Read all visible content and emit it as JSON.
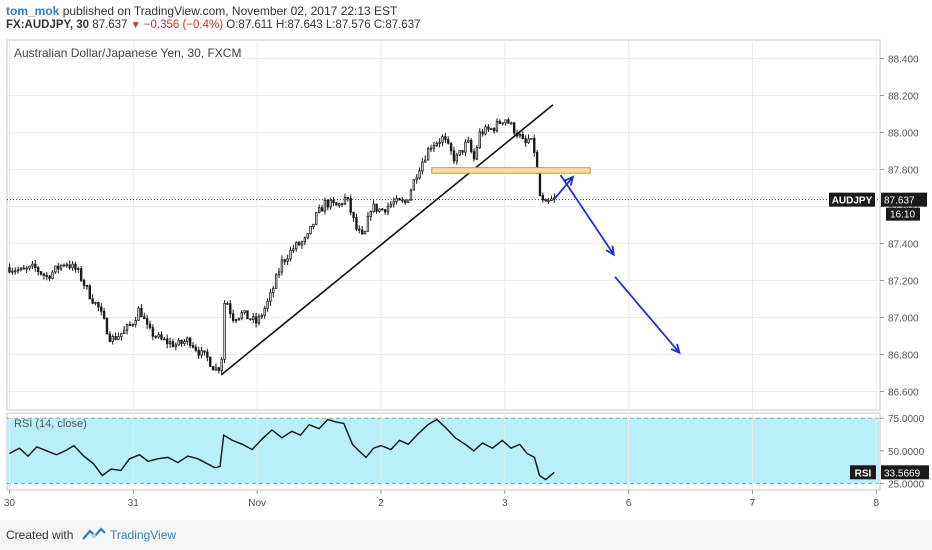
{
  "header": {
    "author": "tom_mok",
    "published": "published on TradingView.com, November 02, 2017 22:13 EST",
    "symbol": "FX:AUDJPY, 30",
    "last": "87.637",
    "change": "−0.356 (−0.4%)",
    "ohlc": {
      "o": "O:87.611",
      "h": "H:87.643",
      "l": "L:87.576",
      "c": "C:87.637"
    }
  },
  "footer": {
    "created_with": "Created with",
    "brand": "TradingView"
  },
  "colors": {
    "candle": "#1a1a1a",
    "rsi_band": "#b9eefb",
    "annotation_arrow": "#1f2fd6",
    "zone_fill": "#f6e0a4",
    "zone_border": "#c89a3a",
    "price_tag": "#1a1a1a",
    "negative": "#d0302f"
  },
  "chart_data": [
    {
      "type": "candlestick",
      "title": "Australian Dollar/Japanese Yen, 30, FXCM",
      "ylim": [
        86.5,
        88.5
      ],
      "y_ticks": [
        "88.400",
        "88.200",
        "88.000",
        "87.800",
        "87.600",
        "87.400",
        "87.200",
        "87.000",
        "86.800",
        "86.600"
      ],
      "x_ticks": [
        "30",
        "31",
        "Nov",
        "2",
        "3",
        "6",
        "7",
        "8"
      ],
      "x_tick_days": [
        0,
        1,
        2,
        3,
        4,
        5,
        6,
        7
      ],
      "xlim_days": [
        -0.02,
        7.03
      ],
      "last_price_label": "AUDJPY",
      "last_price": "87.637",
      "countdown": "16:10",
      "grid": true,
      "close_path": [
        [
          0.0,
          87.27
        ],
        [
          0.1,
          87.25
        ],
        [
          0.2,
          87.27
        ],
        [
          0.3,
          87.22
        ],
        [
          0.45,
          87.3
        ],
        [
          0.55,
          87.25
        ],
        [
          0.65,
          87.12
        ],
        [
          0.72,
          87.05
        ],
        [
          0.82,
          86.88
        ],
        [
          0.92,
          86.92
        ],
        [
          1.0,
          86.98
        ],
        [
          1.05,
          87.05
        ],
        [
          1.12,
          86.93
        ],
        [
          1.22,
          86.88
        ],
        [
          1.35,
          86.85
        ],
        [
          1.45,
          86.88
        ],
        [
          1.55,
          86.8
        ],
        [
          1.6,
          86.78
        ],
        [
          1.66,
          86.72
        ],
        [
          1.71,
          86.74
        ],
        [
          1.74,
          87.12
        ],
        [
          1.8,
          87.0
        ],
        [
          1.88,
          87.02
        ],
        [
          2.0,
          86.97
        ],
        [
          2.1,
          87.1
        ],
        [
          2.2,
          87.3
        ],
        [
          2.3,
          87.38
        ],
        [
          2.4,
          87.42
        ],
        [
          2.48,
          87.55
        ],
        [
          2.55,
          87.62
        ],
        [
          2.65,
          87.6
        ],
        [
          2.72,
          87.65
        ],
        [
          2.8,
          87.48
        ],
        [
          2.86,
          87.42
        ],
        [
          2.92,
          87.6
        ],
        [
          3.0,
          87.58
        ],
        [
          3.1,
          87.62
        ],
        [
          3.2,
          87.62
        ],
        [
          3.3,
          87.8
        ],
        [
          3.4,
          87.93
        ],
        [
          3.5,
          87.97
        ],
        [
          3.6,
          87.85
        ],
        [
          3.7,
          87.95
        ],
        [
          3.75,
          87.85
        ],
        [
          3.8,
          88.0
        ],
        [
          3.9,
          88.02
        ],
        [
          4.0,
          88.08
        ],
        [
          4.07,
          88.02
        ],
        [
          4.12,
          87.98
        ],
        [
          4.16,
          87.93
        ],
        [
          4.2,
          87.97
        ],
        [
          4.25,
          87.88
        ],
        [
          4.27,
          87.68
        ],
        [
          4.32,
          87.6
        ],
        [
          4.37,
          87.63
        ],
        [
          4.4,
          87.637
        ]
      ],
      "trendline": [
        [
          1.71,
          86.69
        ],
        [
          4.39,
          88.15
        ]
      ],
      "resistance_zone": {
        "from_day": 3.41,
        "to_day": 4.69,
        "low": 87.78,
        "high": 87.81
      },
      "annotation_arrows": [
        [
          [
            4.4,
            87.64
          ],
          [
            4.55,
            87.76
          ]
        ],
        [
          [
            4.45,
            87.77
          ],
          [
            4.88,
            87.34
          ]
        ],
        [
          [
            4.89,
            87.22
          ],
          [
            5.41,
            86.81
          ]
        ]
      ]
    },
    {
      "type": "line",
      "title": "RSI (14, close)",
      "series": [
        {
          "name": "RSI",
          "last": "33.5669"
        }
      ],
      "ylim": [
        20,
        79
      ],
      "band": [
        25,
        75
      ],
      "y_ticks": [
        "75.0000",
        "50.0000",
        "25.0000"
      ],
      "last_label": "RSI",
      "points": [
        [
          0.0,
          48
        ],
        [
          0.08,
          52
        ],
        [
          0.15,
          46
        ],
        [
          0.22,
          53
        ],
        [
          0.3,
          50
        ],
        [
          0.38,
          47
        ],
        [
          0.45,
          50
        ],
        [
          0.52,
          54
        ],
        [
          0.6,
          46
        ],
        [
          0.68,
          40
        ],
        [
          0.75,
          31
        ],
        [
          0.82,
          36
        ],
        [
          0.9,
          35
        ],
        [
          0.97,
          44
        ],
        [
          1.05,
          47
        ],
        [
          1.12,
          42
        ],
        [
          1.2,
          44
        ],
        [
          1.28,
          45
        ],
        [
          1.36,
          41
        ],
        [
          1.44,
          46
        ],
        [
          1.52,
          44
        ],
        [
          1.6,
          40
        ],
        [
          1.66,
          37
        ],
        [
          1.7,
          38
        ],
        [
          1.73,
          62
        ],
        [
          1.8,
          58
        ],
        [
          1.88,
          55
        ],
        [
          1.96,
          51
        ],
        [
          2.05,
          60
        ],
        [
          2.12,
          66
        ],
        [
          2.2,
          60
        ],
        [
          2.28,
          65
        ],
        [
          2.35,
          62
        ],
        [
          2.42,
          70
        ],
        [
          2.5,
          67
        ],
        [
          2.57,
          74
        ],
        [
          2.64,
          72
        ],
        [
          2.7,
          71
        ],
        [
          2.77,
          55
        ],
        [
          2.82,
          50
        ],
        [
          2.88,
          45
        ],
        [
          2.94,
          52
        ],
        [
          3.0,
          54
        ],
        [
          3.08,
          51
        ],
        [
          3.15,
          58
        ],
        [
          3.22,
          55
        ],
        [
          3.3,
          63
        ],
        [
          3.38,
          70
        ],
        [
          3.45,
          74
        ],
        [
          3.52,
          68
        ],
        [
          3.6,
          60
        ],
        [
          3.68,
          55
        ],
        [
          3.75,
          50
        ],
        [
          3.82,
          56
        ],
        [
          3.9,
          52
        ],
        [
          3.98,
          58
        ],
        [
          4.05,
          52
        ],
        [
          4.12,
          55
        ],
        [
          4.18,
          48
        ],
        [
          4.24,
          45
        ],
        [
          4.28,
          31
        ],
        [
          4.33,
          28
        ],
        [
          4.38,
          32
        ],
        [
          4.4,
          33.57
        ]
      ]
    }
  ]
}
